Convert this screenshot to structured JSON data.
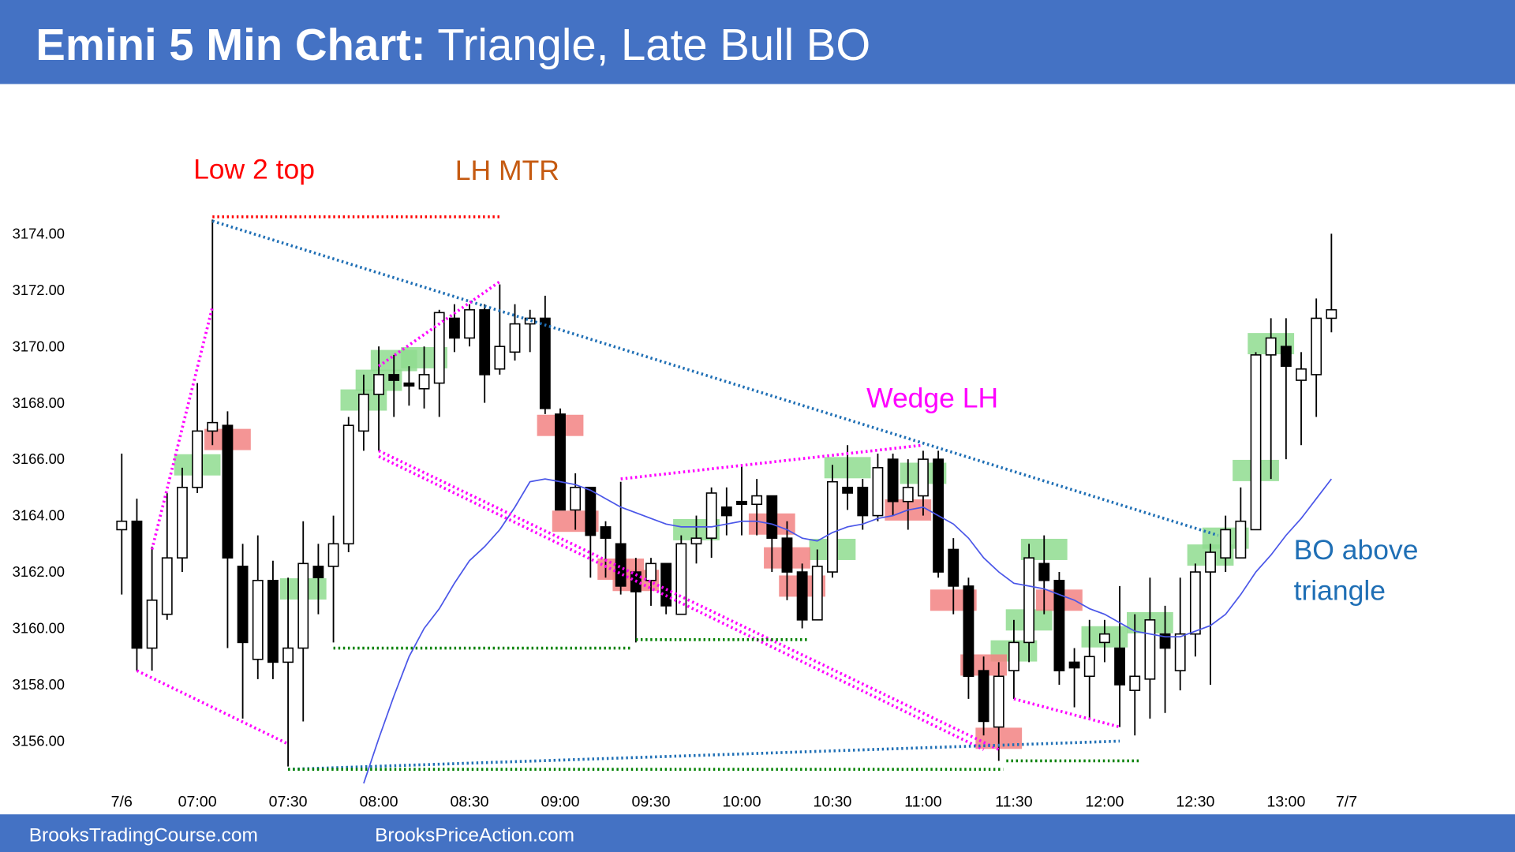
{
  "header": {
    "title_bold": "Emini 5 Min Chart:",
    "title_rest": "Triangle, Late Bull BO"
  },
  "footer": {
    "left": "BrooksTradingCourse.com",
    "right": "BrooksPriceAction.com"
  },
  "chart_data": {
    "type": "candlestick",
    "categories": [
      "7/6",
      null,
      null,
      null,
      null,
      "07:00",
      null,
      null,
      null,
      null,
      null,
      "07:30",
      null,
      null,
      null,
      null,
      null,
      "08:00",
      null,
      null,
      null,
      null,
      null,
      "08:30",
      null,
      null,
      null,
      null,
      null,
      "09:00",
      null,
      null,
      null,
      null,
      null,
      "09:30",
      null,
      null,
      null,
      null,
      null,
      "10:00",
      null,
      null,
      null,
      null,
      null,
      "10:30",
      null,
      null,
      null,
      null,
      null,
      "11:00",
      null,
      null,
      null,
      null,
      null,
      "11:30",
      null,
      null,
      null,
      null,
      null,
      "12:00",
      null,
      null,
      null,
      null,
      null,
      "12:30",
      null,
      null,
      null,
      null,
      null,
      "13:00",
      null,
      null,
      null,
      "7/7"
    ],
    "open": [
      3163.5,
      3163.8,
      3159.3,
      3160.5,
      3162.5,
      3165.0,
      3167.0,
      3167.2,
      3162.2,
      3158.9,
      3161.7,
      3158.8,
      3159.3,
      3162.2,
      3162.2,
      3163.0,
      3167.0,
      3168.3,
      3169.0,
      3168.7,
      3168.5,
      3168.7,
      3171.0,
      3170.3,
      3171.3,
      3169.2,
      3169.8,
      3170.8,
      3171.0,
      3167.6,
      3164.2,
      3165.0,
      3163.6,
      3163.0,
      3162.0,
      3161.7,
      3162.3,
      3160.5,
      3163.0,
      3163.2,
      3164.3,
      3164.5,
      3164.4,
      3164.7,
      3163.2,
      3162.0,
      3160.3,
      3162.0,
      3165.0,
      3165.0,
      3164.0,
      3166.0,
      3164.5,
      3164.7,
      3166.0,
      3162.8,
      3161.5,
      3158.5,
      3156.5,
      3158.5,
      3159.5,
      3162.3,
      3161.7,
      3158.8,
      3158.3,
      3159.5,
      3159.3,
      3157.8,
      3158.2,
      3159.8,
      3158.5,
      3159.8,
      3162.0,
      3162.5,
      3162.5,
      3163.5,
      3169.7,
      3170.0,
      3168.8,
      3169.0,
      3171.0,
      null
    ],
    "high": [
      3166.2,
      3164.6,
      3162.9,
      3164.8,
      3165.7,
      3168.7,
      3174.5,
      3167.7,
      3163.0,
      3163.3,
      3162.4,
      3161.8,
      3163.8,
      3163.0,
      3164.0,
      3167.5,
      3169.0,
      3170.0,
      3169.7,
      3169.3,
      3170.0,
      3171.3,
      3171.5,
      3171.5,
      3171.5,
      3172.2,
      3171.5,
      3171.3,
      3171.8,
      3167.8,
      3165.5,
      3165.0,
      3163.8,
      3165.2,
      3162.5,
      3162.5,
      3162.3,
      3163.3,
      3164.0,
      3165.0,
      3165.0,
      3165.8,
      3165.3,
      3164.7,
      3163.8,
      3162.3,
      3162.8,
      3165.8,
      3166.5,
      3165.3,
      3166.2,
      3166.2,
      3166.0,
      3166.3,
      3166.3,
      3163.2,
      3161.8,
      3159.0,
      3158.8,
      3160.3,
      3163.0,
      3163.3,
      3162.0,
      3159.3,
      3160.3,
      3160.3,
      3161.5,
      3160.5,
      3161.8,
      3160.8,
      3161.8,
      3162.3,
      3163.0,
      3164.0,
      3165.0,
      3169.8,
      3171.0,
      3171.0,
      3169.8,
      3171.7,
      3174.0,
      null
    ],
    "low": [
      3161.2,
      3158.5,
      3158.5,
      3160.3,
      3162.0,
      3164.8,
      3166.5,
      3159.3,
      3156.8,
      3158.2,
      3158.2,
      3155.1,
      3156.7,
      3160.5,
      3159.5,
      3162.7,
      3166.3,
      3166.3,
      3167.5,
      3167.9,
      3167.8,
      3167.5,
      3169.8,
      3170.0,
      3168.0,
      3169.0,
      3169.5,
      3169.8,
      3167.6,
      3164.2,
      3163.5,
      3161.8,
      3161.8,
      3161.2,
      3159.5,
      3160.8,
      3160.5,
      3160.5,
      3162.3,
      3162.5,
      3163.3,
      3163.3,
      3163.3,
      3162.0,
      3161.0,
      3160.0,
      3160.3,
      3161.8,
      3164.2,
      3163.5,
      3163.8,
      3164.0,
      3163.5,
      3164.0,
      3161.8,
      3160.5,
      3157.5,
      3156.2,
      3155.3,
      3157.5,
      3158.8,
      3160.5,
      3158.0,
      3157.2,
      3156.8,
      3158.8,
      3156.5,
      3156.2,
      3156.8,
      3157.0,
      3157.8,
      3159.0,
      3158.0,
      3162.0,
      3162.5,
      3163.5,
      3165.3,
      3166.0,
      3166.5,
      3167.5,
      3170.5,
      null
    ],
    "close": [
      3163.8,
      3159.3,
      3161.0,
      3162.5,
      3165.0,
      3167.0,
      3167.3,
      3162.5,
      3159.5,
      3161.7,
      3158.8,
      3159.3,
      3162.3,
      3161.8,
      3163.0,
      3167.2,
      3168.3,
      3169.0,
      3168.8,
      3168.6,
      3169.0,
      3171.2,
      3170.3,
      3171.3,
      3169.0,
      3170.0,
      3170.8,
      3171.0,
      3167.8,
      3164.2,
      3165.0,
      3163.3,
      3163.2,
      3161.5,
      3161.3,
      3162.3,
      3160.8,
      3163.0,
      3163.2,
      3164.8,
      3164.0,
      3164.4,
      3164.7,
      3163.2,
      3162.0,
      3160.3,
      3162.2,
      3165.2,
      3164.8,
      3164.0,
      3165.7,
      3164.5,
      3165.0,
      3166.0,
      3162.0,
      3161.5,
      3158.3,
      3156.7,
      3158.3,
      3159.5,
      3162.5,
      3161.7,
      3158.5,
      3158.6,
      3159.0,
      3159.8,
      3158.0,
      3158.3,
      3160.3,
      3159.3,
      3159.8,
      3162.0,
      3162.7,
      3163.5,
      3163.8,
      3169.7,
      3170.3,
      3169.3,
      3169.2,
      3171.0,
      3171.3,
      null
    ],
    "up_color": "#ffffff",
    "down_color": "#000000",
    "ema": {
      "color": "#4a56e8",
      "values": [
        null,
        null,
        null,
        null,
        null,
        null,
        null,
        null,
        null,
        null,
        null,
        null,
        null,
        null,
        null,
        null,
        3154.5,
        3156.1,
        3157.6,
        3159.0,
        3160.0,
        3160.7,
        3161.6,
        3162.4,
        3162.9,
        3163.5,
        3164.3,
        3165.2,
        3165.3,
        3165.2,
        3165.1,
        3164.9,
        3164.6,
        3164.3,
        3164.1,
        3163.9,
        3163.7,
        3163.6,
        3163.6,
        3163.6,
        3163.7,
        3163.8,
        3163.8,
        3163.7,
        3163.5,
        3163.2,
        3163.1,
        3163.4,
        3163.6,
        3163.7,
        3163.9,
        3164.0,
        3164.2,
        3164.3,
        3164.0,
        3163.7,
        3163.2,
        3162.5,
        3162.0,
        3161.6,
        3161.5,
        3161.4,
        3161.2,
        3161.0,
        3160.7,
        3160.5,
        3160.2,
        3159.9,
        3159.8,
        3159.7,
        3159.7,
        3159.9,
        3160.1,
        3160.5,
        3161.2,
        3162.0,
        3162.6,
        3163.3,
        3163.9,
        3164.6,
        3165.3,
        null
      ]
    },
    "ylim": [
      3154.5,
      3179
    ],
    "yticks": [
      {
        "value": 3156,
        "label": "3156.00"
      },
      {
        "value": 3158,
        "label": "3158.00"
      },
      {
        "value": 3160,
        "label": "3160.00"
      },
      {
        "value": 3162,
        "label": "3162.00"
      },
      {
        "value": 3164,
        "label": "3164.00"
      },
      {
        "value": 3166,
        "label": "3166.00"
      },
      {
        "value": 3168,
        "label": "3168.00"
      },
      {
        "value": 3170,
        "label": "3170.00"
      },
      {
        "value": 3172,
        "label": "3172.00"
      },
      {
        "value": 3174,
        "label": "3174.00"
      }
    ],
    "grid": false,
    "signal_colors": {
      "buy": "#8fdc8f",
      "sell": "#f28282"
    },
    "buy_signals": [
      {
        "bar": 5,
        "price": 3165.8
      },
      {
        "bar": 12,
        "price": 3161.4
      },
      {
        "bar": 16,
        "price": 3168.1
      },
      {
        "bar": 17,
        "price": 3168.8
      },
      {
        "bar": 18,
        "price": 3169.5
      },
      {
        "bar": 20,
        "price": 3169.6
      },
      {
        "bar": 38,
        "price": 3163.5
      },
      {
        "bar": 47,
        "price": 3162.8
      },
      {
        "bar": 48,
        "price": 3165.7
      },
      {
        "bar": 53,
        "price": 3165.5
      },
      {
        "bar": 59,
        "price": 3159.2
      },
      {
        "bar": 60,
        "price": 3160.3
      },
      {
        "bar": 61,
        "price": 3162.8
      },
      {
        "bar": 65,
        "price": 3159.7
      },
      {
        "bar": 68,
        "price": 3160.2
      },
      {
        "bar": 72,
        "price": 3162.6
      },
      {
        "bar": 73,
        "price": 3163.2
      },
      {
        "bar": 75,
        "price": 3165.6
      },
      {
        "bar": 76,
        "price": 3170.1
      }
    ],
    "sell_signals": [
      {
        "bar": 7,
        "price": 3166.7
      },
      {
        "bar": 29,
        "price": 3167.2
      },
      {
        "bar": 30,
        "price": 3163.8
      },
      {
        "bar": 33,
        "price": 3162.1
      },
      {
        "bar": 34,
        "price": 3161.7
      },
      {
        "bar": 43,
        "price": 3163.7
      },
      {
        "bar": 44,
        "price": 3162.5
      },
      {
        "bar": 45,
        "price": 3161.5
      },
      {
        "bar": 52,
        "price": 3164.2
      },
      {
        "bar": 55,
        "price": 3161.0
      },
      {
        "bar": 57,
        "price": 3158.7
      },
      {
        "bar": 58,
        "price": 3156.1
      },
      {
        "bar": 62,
        "price": 3161.0
      }
    ],
    "trendlines": [
      {
        "from": [
          6,
          3174.6
        ],
        "to": [
          25,
          3174.6
        ],
        "color": "#ff0000"
      },
      {
        "from": [
          6,
          3174.45
        ],
        "to": [
          72.5,
          3163.3
        ],
        "color": "#1f6fb5"
      },
      {
        "from": [
          2,
          3162.8
        ],
        "to": [
          6,
          3171.4
        ],
        "color": "#ff00ff"
      },
      {
        "from": [
          1,
          3158.5
        ],
        "to": [
          11,
          3155.9
        ],
        "color": "#ff00ff"
      },
      {
        "from": [
          17,
          3166.3
        ],
        "to": [
          58,
          3155.7
        ],
        "color": "#ff00ff"
      },
      {
        "from": [
          17,
          3166.1
        ],
        "to": [
          57,
          3155.7
        ],
        "color": "#ff00ff"
      },
      {
        "from": [
          17,
          3169.3
        ],
        "to": [
          25,
          3172.3
        ],
        "color": "#ff00ff"
      },
      {
        "from": [
          33,
          3165.3
        ],
        "to": [
          53,
          3166.5
        ],
        "color": "#ff00ff"
      },
      {
        "from": [
          59,
          3157.5
        ],
        "to": [
          66,
          3156.5
        ],
        "color": "#ff00ff"
      },
      {
        "from": [
          11,
          3155.0
        ],
        "to": [
          66,
          3156.0
        ],
        "color": "#1f6fb5"
      },
      {
        "from": [
          11,
          3155.0
        ],
        "to": [
          58.3,
          3155.0
        ],
        "color": "#008000"
      },
      {
        "from": [
          14,
          3159.3
        ],
        "to": [
          33.7,
          3159.3
        ],
        "color": "#008000"
      },
      {
        "from": [
          34,
          3159.6
        ],
        "to": [
          45.5,
          3159.6
        ],
        "color": "#008000"
      },
      {
        "from": [
          58.5,
          3155.3
        ],
        "to": [
          67.3,
          3155.3
        ],
        "color": "#008000"
      }
    ],
    "annotations": [
      {
        "lines": [
          "Low 2 top"
        ],
        "color": "#ff0000"
      },
      {
        "lines": [
          "LH MTR"
        ],
        "color": "#c55a11"
      },
      {
        "lines": [
          "Wedge LH"
        ],
        "color": "#ff00ff"
      },
      {
        "lines": [
          "BO above",
          "triangle"
        ],
        "color": "#1f6fb5"
      }
    ]
  }
}
